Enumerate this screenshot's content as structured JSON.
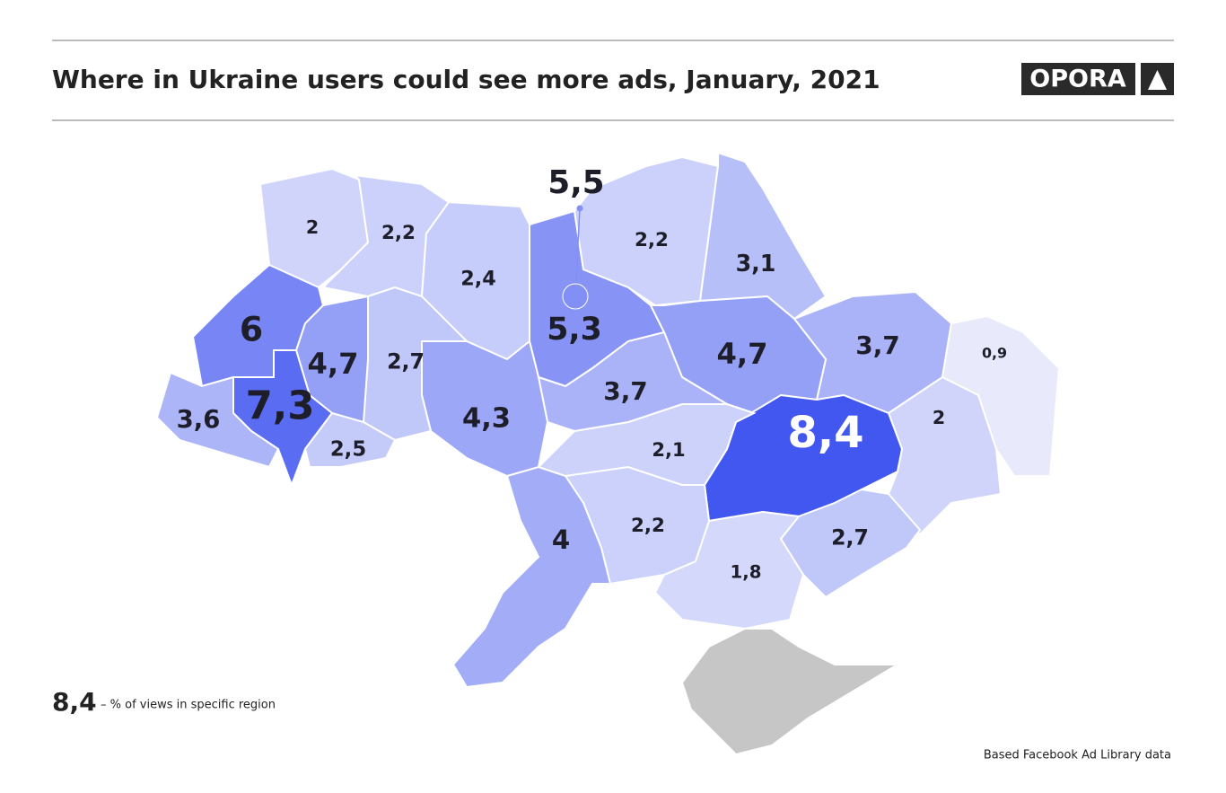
{
  "header": {
    "title": "Where in Ukraine users could see more ads, January, 2021",
    "logo": "OPORA"
  },
  "map": {
    "regions": [
      {
        "label": "2",
        "value": 2
      },
      {
        "label": "2,2",
        "value": 2.2
      },
      {
        "label": "2,4",
        "value": 2.4
      },
      {
        "label": "5,3",
        "value": 5.3
      },
      {
        "label": "2,2",
        "value": 2.2
      },
      {
        "label": "3,1",
        "value": 3.1
      },
      {
        "label": "3,7",
        "value": 3.7
      },
      {
        "label": "0,9",
        "value": 0.9
      },
      {
        "label": "2",
        "value": 2
      },
      {
        "label": "4,7",
        "value": 4.7
      },
      {
        "label": "8,4",
        "value": 8.4
      },
      {
        "label": "2,7",
        "value": 2.7
      },
      {
        "label": "1,8",
        "value": 1.8
      },
      {
        "label": "2,2",
        "value": 2.2
      },
      {
        "label": "4",
        "value": 4
      },
      {
        "label": "2,1",
        "value": 2.1
      },
      {
        "label": "3,7",
        "value": 3.7
      },
      {
        "label": "4,3",
        "value": 4.3
      },
      {
        "label": "2,7",
        "value": 2.7
      },
      {
        "label": "4,7",
        "value": 4.7
      },
      {
        "label": "6",
        "value": 6
      },
      {
        "label": "7,3",
        "value": 7.3
      },
      {
        "label": "3,6",
        "value": 3.6
      },
      {
        "label": "2,5",
        "value": 2.5
      }
    ],
    "city": {
      "label": "5,5",
      "value": 5.5
    }
  },
  "legend": {
    "sample": "8,4",
    "text": "– % of views in specific region"
  },
  "source": "Based Facebook Ad Library data"
}
